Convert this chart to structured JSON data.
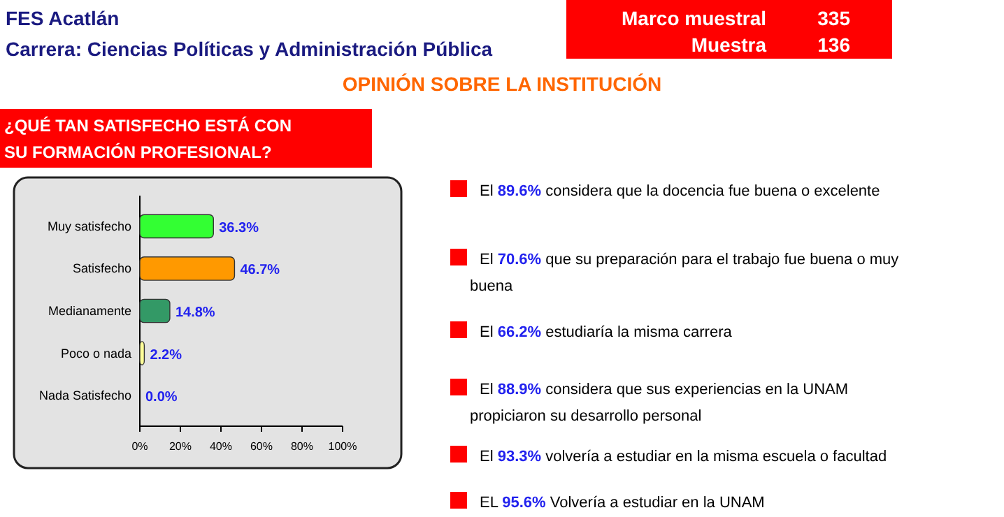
{
  "chart_data": {
    "type": "bar",
    "orientation": "horizontal",
    "title": "OPINIÓN SOBRE LA INSTITUCIÓN",
    "subtitle": "¿QUÉ TAN SATISFECHO ESTÁ CON SU FORMACIÓN PROFESIONAL?",
    "categories": [
      "Muy satisfecho",
      "Satisfecho",
      "Medianamente",
      "Poco o nada",
      "Nada Satisfecho"
    ],
    "values": [
      36.3,
      46.7,
      14.8,
      2.2,
      0.0
    ],
    "colors": [
      "#33ff33",
      "#ff9900",
      "#339966",
      "#ffff99",
      "#6666cc"
    ],
    "value_labels": [
      "36.3%",
      "46.7%",
      "14.8%",
      "2.2%",
      "0.0%"
    ],
    "xlim": [
      0,
      100
    ],
    "xticks": [
      {
        "value": 0,
        "label": "0%"
      },
      {
        "value": 20,
        "label": "20%"
      },
      {
        "value": 40,
        "label": "40%"
      },
      {
        "value": 60,
        "label": "60%"
      },
      {
        "value": 80,
        "label": "80%"
      },
      {
        "value": 100,
        "label": "100%"
      }
    ],
    "annotations": [
      "FES Acatlán",
      "Carrera: Ciencias Políticas y Administración Pública",
      "Marco muestral",
      "335",
      "Muestra",
      "136",
      "El 89.6% considera que la docencia fue buena o excelente",
      "El 70.6% que su preparación para el trabajo fue buena o muy buena",
      "El 66.2% estudiaría la misma carrera",
      "El 88.9% considera que sus experiencias en la UNAM propiciaron su desarrollo personal",
      "El 93.3% volvería a estudiar en la misma escuela o facultad",
      "EL 95.6% Volvería a estudiar en la UNAM"
    ]
  }
}
